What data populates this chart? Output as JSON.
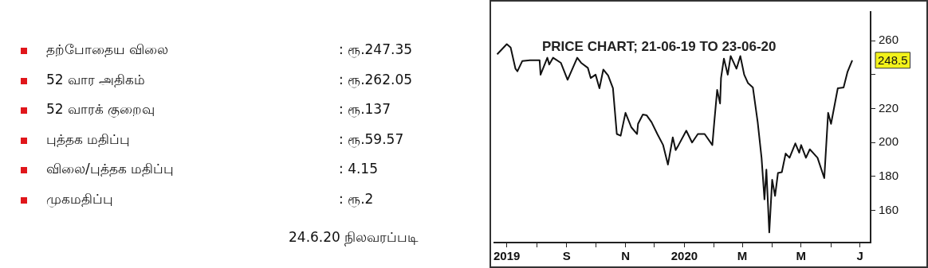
{
  "chart_data": [
    {
      "type": "other",
      "categories": [
        "தற்போதைய விலை",
        "52 வார அதிகம்",
        "52 வாரக் குறைவு",
        "புத்தக மதிப்பு",
        "விலை/புத்தக மதிப்பு",
        "முகமதிப்பு"
      ],
      "value_labels": [
        ": ரூ.247.35",
        ": ரூ.262.05",
        ": ரூ.137",
        ": ரூ.59.57",
        ": 4.15",
        ": ரூ.2"
      ],
      "annotations": [
        "24.6.20 நிலவரப்படி"
      ]
    },
    {
      "type": "line",
      "title": "PRICE CHART; 21-06-19 TO 23-06-20",
      "x": [
        "2019-06-21",
        "2019-07-01",
        "2019-07-05",
        "2019-07-10",
        "2019-07-12",
        "2019-07-17",
        "2019-07-25",
        "2019-08-04",
        "2019-08-05",
        "2019-08-12",
        "2019-08-14",
        "2019-08-18",
        "2019-08-26",
        "2019-09-02",
        "2019-09-12",
        "2019-09-16",
        "2019-09-23",
        "2019-09-26",
        "2019-10-01",
        "2019-10-05",
        "2019-10-09",
        "2019-10-14",
        "2019-10-19",
        "2019-10-23",
        "2019-10-27",
        "2019-11-01",
        "2019-11-07",
        "2019-11-13",
        "2019-11-14",
        "2019-11-19",
        "2019-11-23",
        "2019-11-28",
        "2019-12-04",
        "2019-12-10",
        "2019-12-15",
        "2019-12-20",
        "2019-12-23",
        "2019-12-26",
        "2020-01-03",
        "2020-01-09",
        "2020-01-15",
        "2020-01-22",
        "2020-01-30",
        "2020-02-01",
        "2020-02-04",
        "2020-02-07",
        "2020-02-08",
        "2020-02-11",
        "2020-02-15",
        "2020-02-18",
        "2020-02-24",
        "2020-02-28",
        "2020-03-03",
        "2020-03-07",
        "2020-03-12",
        "2020-03-17",
        "2020-03-21",
        "2020-03-24",
        "2020-03-26",
        "2020-03-29",
        "2020-04-01",
        "2020-04-04",
        "2020-04-07",
        "2020-04-11",
        "2020-04-15",
        "2020-04-19",
        "2020-04-25",
        "2020-04-29",
        "2020-05-01",
        "2020-05-06",
        "2020-05-10",
        "2020-05-18",
        "2020-05-25",
        "2020-05-29",
        "2020-06-01",
        "2020-06-08",
        "2020-06-14",
        "2020-06-18",
        "2020-06-23"
      ],
      "series": [
        {
          "color": "#111111",
          "values": [
            252,
            258,
            256,
            243.5,
            242,
            248,
            248.5,
            248.5,
            240,
            250,
            246,
            250,
            247,
            237,
            250,
            247,
            244,
            238,
            240,
            232,
            243,
            239.5,
            232,
            205,
            204,
            217.5,
            209,
            205,
            211,
            216.5,
            216,
            212,
            205,
            198.5,
            187,
            203,
            195.5,
            198.5,
            207,
            200,
            205,
            205,
            198.5,
            212,
            231,
            223,
            238,
            249.5,
            240,
            251,
            243.5,
            251,
            240,
            235,
            232.5,
            212,
            191,
            166.5,
            184,
            147,
            178,
            168.5,
            182,
            182.5,
            193.5,
            191,
            199.5,
            194,
            198.5,
            191,
            196,
            191,
            179,
            217.5,
            211,
            232,
            232.5,
            241.5,
            248.5
          ]
        }
      ],
      "xlim": [
        "2019-06-18",
        "2020-07-12"
      ],
      "ylim": [
        141,
        277
      ],
      "xticks": [
        {
          "value": "2019-07-01",
          "label": "2019"
        },
        {
          "value": "2019-08-01",
          "label": null
        },
        {
          "value": "2019-09-01",
          "label": "S"
        },
        {
          "value": "2019-10-01",
          "label": null
        },
        {
          "value": "2019-11-01",
          "label": "N"
        },
        {
          "value": "2019-12-01",
          "label": null
        },
        {
          "value": "2020-01-01",
          "label": "2020"
        },
        {
          "value": "2020-02-01",
          "label": null
        },
        {
          "value": "2020-03-01",
          "label": "M"
        },
        {
          "value": "2020-04-01",
          "label": null
        },
        {
          "value": "2020-05-01",
          "label": "M"
        },
        {
          "value": "2020-06-01",
          "label": null
        },
        {
          "value": "2020-07-01",
          "label": "J"
        }
      ],
      "yticks": [
        160,
        180,
        200,
        220,
        {
          "value": 240,
          "label": null
        },
        260
      ],
      "annotations": [
        {
          "text": "248.5",
          "x": "2020-06-23",
          "y": 248.5
        }
      ],
      "grid": false,
      "legend": false,
      "marker": "none"
    }
  ]
}
